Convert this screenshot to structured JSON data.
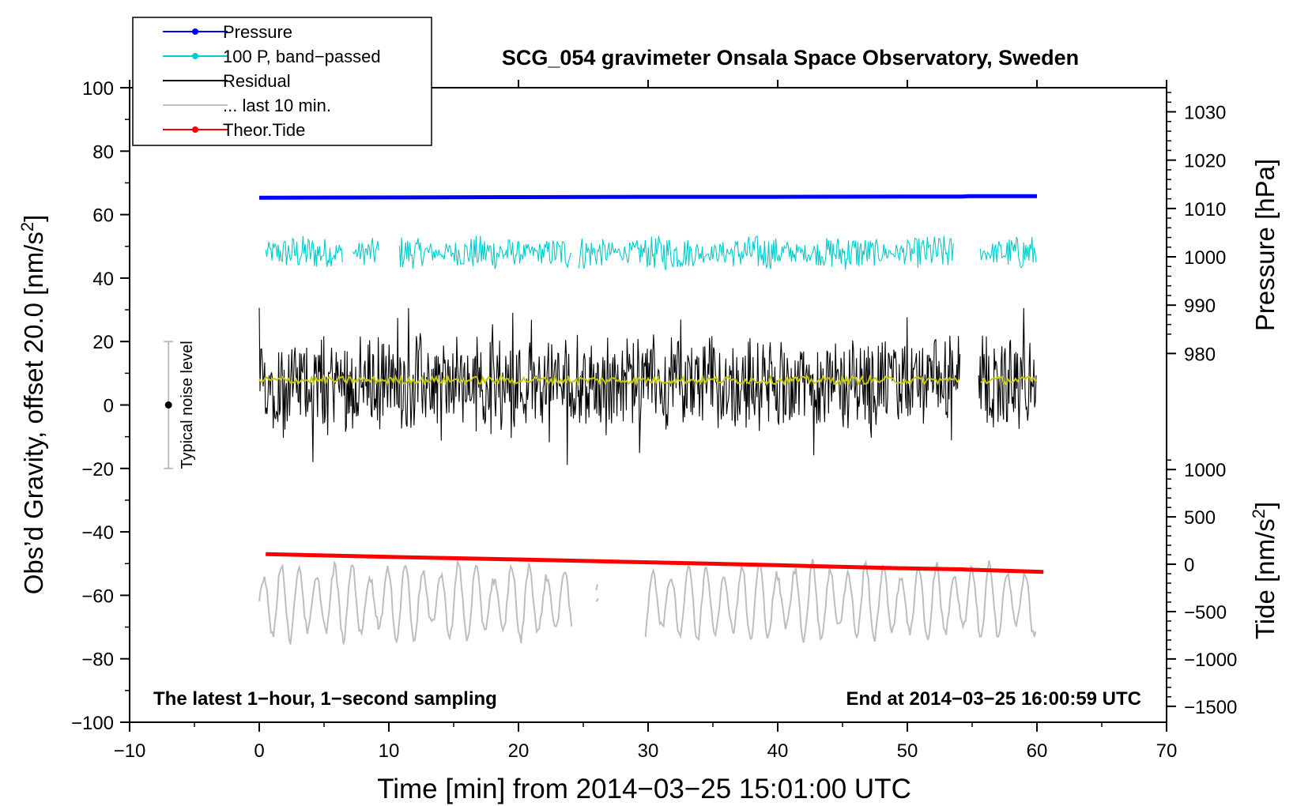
{
  "chart_data": {
    "type": "line",
    "title": "SCG_054 gravimeter Onsala Space Observatory, Sweden",
    "xlabel": "Time [min] from 2014−03−25 15:01:00 UTC",
    "ylabel_left": "Obs’d Gravity, offset 20.0 [nm/s",
    "ylabel_left_sup": "2",
    "ylabel_left_end": "]",
    "ylabel_right_pressure": "Pressure [hPa]",
    "ylabel_right_tide": "Tide [nm/s",
    "ylabel_right_tide_sup": "2",
    "ylabel_right_tide_end": "]",
    "note_left": "The latest 1−hour, 1−second sampling",
    "note_right": "End at 2014−03−25 16:00:59 UTC",
    "noise_label": "Typical noise level",
    "noise_bar": {
      "x": -7,
      "center": 0,
      "low": -20,
      "high": 20
    },
    "xlim": [
      -10,
      70
    ],
    "ylim": [
      -100,
      100
    ],
    "x_ticks": [
      -10,
      0,
      10,
      20,
      30,
      40,
      50,
      60,
      70
    ],
    "x_tick_labels": [
      "−10",
      "0",
      "10",
      "20",
      "30",
      "40",
      "50",
      "60",
      "70"
    ],
    "y_ticks": [
      -100,
      -80,
      -60,
      -40,
      -20,
      0,
      20,
      40,
      60,
      80,
      100
    ],
    "y_tick_labels": [
      "−100",
      "−80",
      "−60",
      "−40",
      "−20",
      "0",
      "20",
      "40",
      "60",
      "80",
      "100"
    ],
    "pressure_axis": {
      "ticks": [
        980,
        990,
        1000,
        1010,
        1020,
        1030
      ],
      "tick_labels": [
        "980",
        "990",
        "1000",
        "1010",
        "1020",
        "1030"
      ],
      "ref_value": 1000,
      "ref_y": 46.7,
      "hpa_per_unit": 0.6564
    },
    "tide_axis": {
      "ticks": [
        -1500,
        -1000,
        -500,
        0,
        500,
        1000
      ],
      "tick_labels": [
        "−1500",
        "−1000",
        "−500",
        "0",
        "500",
        "1000"
      ],
      "ref_value": 0,
      "ref_y": -50.2,
      "nms2_per_unit": 33.5
    },
    "legend": [
      {
        "label": "Pressure",
        "color": "#0000ff",
        "marker": true
      },
      {
        "label": "100 P, band−passed",
        "color": "#00cccc",
        "marker": true
      },
      {
        "label": "Residual",
        "color": "#000000",
        "marker": false
      },
      {
        "label": "... last 10 min.",
        "color": "#bebebe",
        "marker": false
      },
      {
        "label": "Theor.Tide",
        "color": "#ff0000",
        "marker": true
      }
    ],
    "series": [
      {
        "name": "Pressure",
        "color": "#0000ff",
        "x": [
          0,
          10,
          20,
          30,
          40,
          50,
          54.2,
          54.7,
          60
        ],
        "y": [
          65.3,
          65.4,
          65.5,
          65.6,
          65.6,
          65.7,
          65.7,
          65.8,
          65.8
        ]
      },
      {
        "name": "100 P, band−passed",
        "color": "#00cccc",
        "x_start": 0.5,
        "x_end": 60,
        "center": 48,
        "amplitude": 4,
        "gaps": [
          [
            6.5,
            7.2
          ],
          [
            9.3,
            10.8
          ],
          [
            24.1,
            24.6
          ],
          [
            53.6,
            55.6
          ]
        ]
      },
      {
        "name": "Residual",
        "color": "#000000",
        "x_start": 0,
        "x_end": 60,
        "center": 7,
        "amplitude": 16,
        "gaps": [
          [
            54.1,
            55.5
          ]
        ]
      },
      {
        "name": "Residual (smoothed)",
        "color": "#c8c800",
        "x_start": 0,
        "x_end": 60,
        "center": 7.8,
        "amplitude": 1.2,
        "gaps": [
          [
            54.1,
            55.5
          ]
        ]
      },
      {
        "name": "... last 10 min.",
        "color": "#bebebe",
        "x_start": 0,
        "x_end": 60,
        "center": -62,
        "amplitude": 11,
        "gaps": [
          [
            24.2,
            26.0
          ],
          [
            26.2,
            29.8
          ]
        ]
      },
      {
        "name": "Theor.Tide",
        "color": "#ff0000",
        "x": [
          0.5,
          10,
          20,
          30,
          40,
          50,
          54.2,
          54.7,
          60.5
        ],
        "y": [
          -47.0,
          -47.9,
          -48.7,
          -49.6,
          -50.5,
          -51.5,
          -51.8,
          -51.9,
          -52.6
        ]
      }
    ]
  }
}
